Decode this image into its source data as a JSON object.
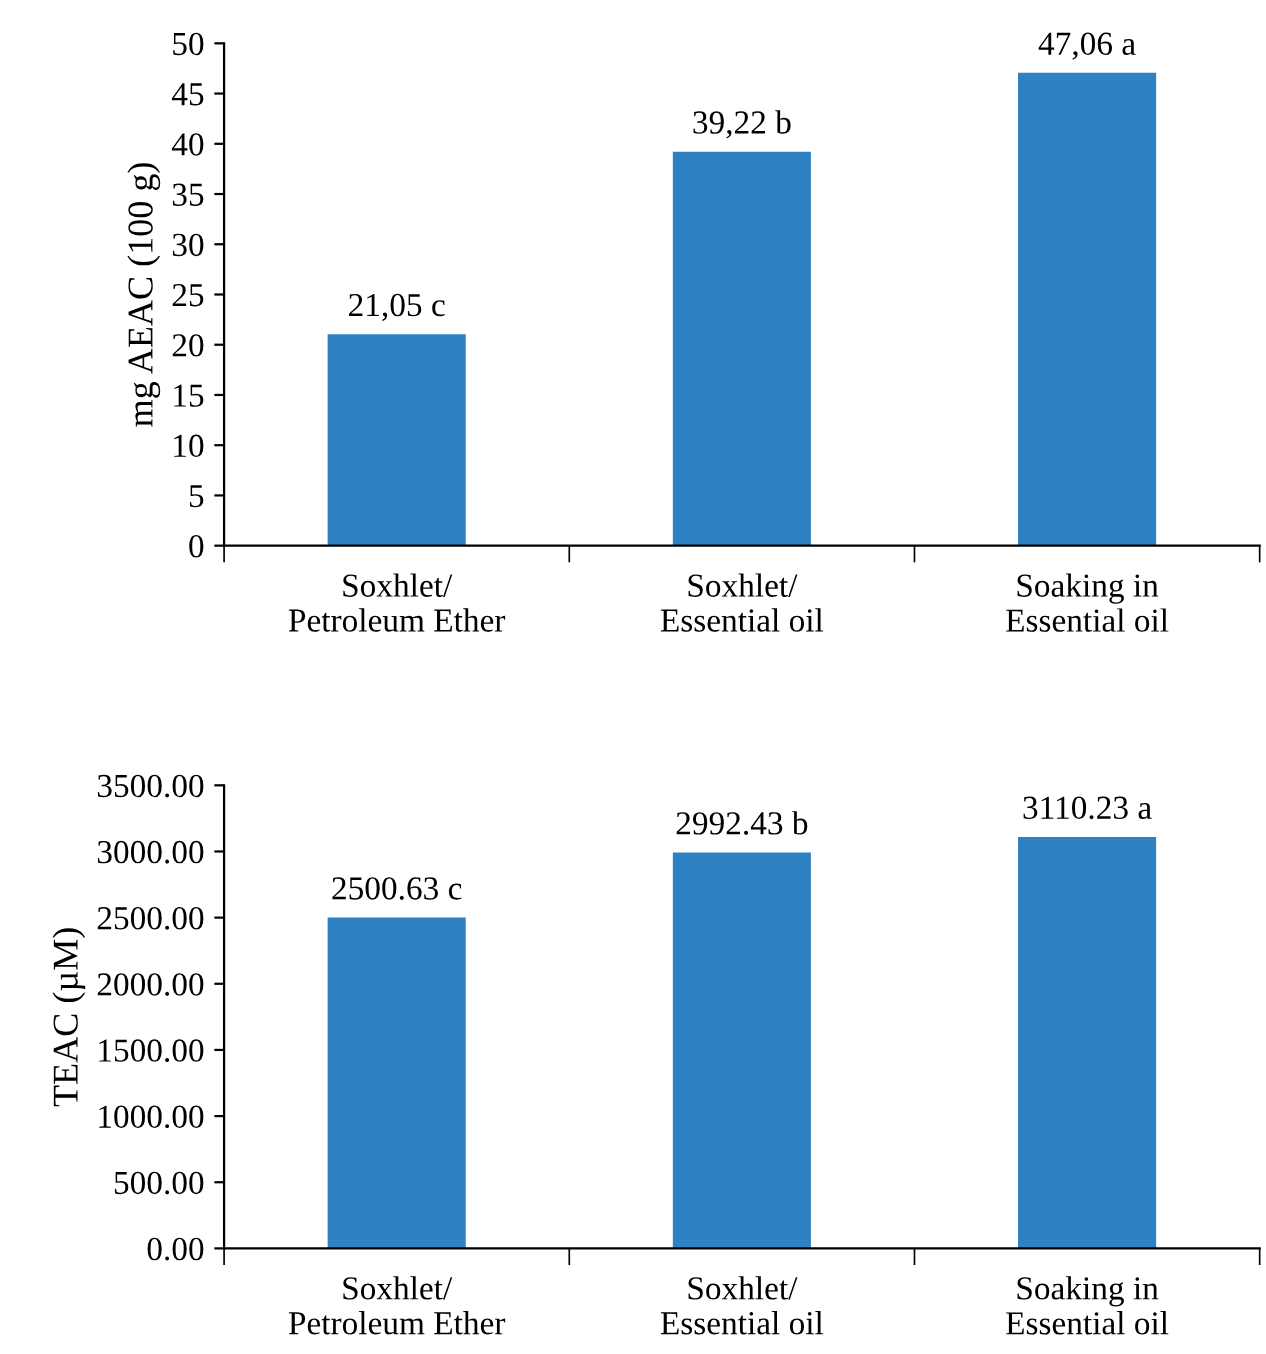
{
  "chart_data": [
    {
      "type": "bar",
      "ylabel": "mg AEAC (100 g)",
      "categories": [
        "Soxhlet/\nPetroleum Ether",
        "Soxhlet/\nEssential oil",
        "Soaking in\nEssential oil"
      ],
      "values": [
        21.05,
        39.22,
        47.06
      ],
      "value_labels": [
        "21,05 c",
        "39,22 b",
        "47,06 a"
      ],
      "color": "#2e81c3",
      "ylim": [
        0,
        50
      ],
      "yticks": [
        0,
        5,
        10,
        15,
        20,
        25,
        30,
        35,
        40,
        45,
        50
      ],
      "grid": false,
      "legend": false
    },
    {
      "type": "bar",
      "ylabel": "TEAC (µM)",
      "categories": [
        "Soxhlet/\nPetroleum Ether",
        "Soxhlet/\nEssential oil",
        "Soaking in\nEssential oil"
      ],
      "values": [
        2500.63,
        2992.43,
        3110.23
      ],
      "value_labels": [
        "2500.63 c",
        "2992.43 b",
        "3110.23 a"
      ],
      "color": "#2e81c3",
      "ylim": [
        0,
        3500
      ],
      "yticks": [
        {
          "value": 0,
          "label": "0.00"
        },
        {
          "value": 500,
          "label": "500.00"
        },
        {
          "value": 1000,
          "label": "1000.00"
        },
        {
          "value": 1500,
          "label": "1500.00"
        },
        {
          "value": 2000,
          "label": "2000.00"
        },
        {
          "value": 2500,
          "label": "2500.00"
        },
        {
          "value": 3000,
          "label": "3000.00"
        },
        {
          "value": 3500,
          "label": "3500.00"
        }
      ],
      "grid": false,
      "legend": false
    }
  ]
}
